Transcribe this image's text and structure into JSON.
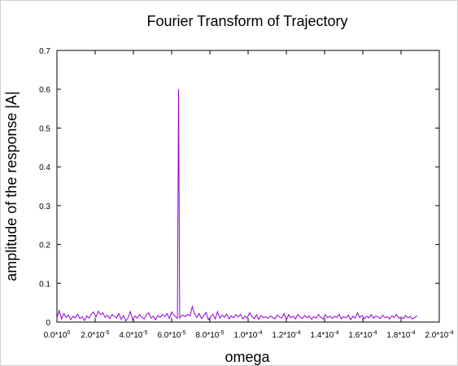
{
  "chart_data": {
    "type": "line",
    "title": "Fourier Transform of Trajectory",
    "xlabel": "omega",
    "ylabel": "amplitude of the response |A|",
    "xlim": [
      0,
      0.0002
    ],
    "ylim": [
      0,
      0.7
    ],
    "grid": false,
    "legend": "none",
    "line_color": "#9400d3",
    "x_ticks": [
      {
        "value": 0,
        "mantissa": "0.0",
        "exponent": "0"
      },
      {
        "value": 2e-05,
        "mantissa": "2.0",
        "exponent": "-5"
      },
      {
        "value": 4e-05,
        "mantissa": "4.0",
        "exponent": "-5"
      },
      {
        "value": 6e-05,
        "mantissa": "6.0",
        "exponent": "-5"
      },
      {
        "value": 8e-05,
        "mantissa": "8.0",
        "exponent": "-5"
      },
      {
        "value": 0.0001,
        "mantissa": "1.0",
        "exponent": "-4"
      },
      {
        "value": 0.00012,
        "mantissa": "1.2",
        "exponent": "-4"
      },
      {
        "value": 0.00014,
        "mantissa": "1.4",
        "exponent": "-4"
      },
      {
        "value": 0.00016,
        "mantissa": "1.6",
        "exponent": "-4"
      },
      {
        "value": 0.00018,
        "mantissa": "1.8",
        "exponent": "-4"
      },
      {
        "value": 0.0002,
        "mantissa": "2.0",
        "exponent": "-4"
      }
    ],
    "y_ticks": [
      0,
      0.1,
      0.2,
      0.3,
      0.4,
      0.5,
      0.6,
      0.7
    ],
    "y_tick_labels": [
      "0",
      "0.1",
      "0.2",
      "0.3",
      "0.4",
      "0.5",
      "0.6",
      "0.7"
    ],
    "series": [
      {
        "x": [
          0.0,
          1.2e-06,
          2.4e-06,
          3.6e-06,
          4.8e-06,
          6e-06,
          7.2e-06,
          8.4e-06,
          9.6e-06,
          1.08e-05,
          1.2e-05,
          1.32e-05,
          1.44e-05,
          1.56e-05,
          1.68e-05,
          1.8e-05,
          1.92e-05,
          2.04e-05,
          2.16e-05,
          2.28e-05,
          2.4e-05,
          2.52e-05,
          2.64e-05,
          2.76e-05,
          2.88e-05,
          3e-05,
          3.12e-05,
          3.24e-05,
          3.36e-05,
          3.48e-05,
          3.6e-05,
          3.72e-05,
          3.84e-05,
          3.96e-05,
          4.08e-05,
          4.2e-05,
          4.32e-05,
          4.44e-05,
          4.56e-05,
          4.68e-05,
          4.8e-05,
          4.92e-05,
          5.04e-05,
          5.16e-05,
          5.28e-05,
          5.4e-05,
          5.52e-05,
          5.64e-05,
          5.76e-05,
          5.88e-05,
          6e-05,
          6.12e-05,
          6.24e-05,
          6.3e-05,
          6.36e-05,
          6.42e-05,
          6.48e-05,
          6.6e-05,
          6.72e-05,
          6.84e-05,
          6.96e-05,
          7.08e-05,
          7.2e-05,
          7.32e-05,
          7.44e-05,
          7.56e-05,
          7.68e-05,
          7.8e-05,
          7.92e-05,
          8.04e-05,
          8.16e-05,
          8.28e-05,
          8.4e-05,
          8.52e-05,
          8.64e-05,
          8.76e-05,
          8.88e-05,
          9e-05,
          9.12e-05,
          9.24e-05,
          9.36e-05,
          9.48e-05,
          9.6e-05,
          9.72e-05,
          9.84e-05,
          9.96e-05,
          0.0001008,
          0.000102,
          0.0001032,
          0.0001044,
          0.0001056,
          0.0001068,
          0.000108,
          0.0001092,
          0.0001104,
          0.0001116,
          0.0001128,
          0.000114,
          0.0001152,
          0.0001164,
          0.0001176,
          0.0001188,
          0.00012,
          0.0001212,
          0.0001224,
          0.0001236,
          0.0001248,
          0.000126,
          0.0001272,
          0.0001284,
          0.0001296,
          0.0001308,
          0.000132,
          0.0001332,
          0.0001344,
          0.0001356,
          0.0001368,
          0.000138,
          0.0001392,
          0.0001404,
          0.0001416,
          0.0001428,
          0.000144,
          0.0001452,
          0.0001464,
          0.0001476,
          0.0001488,
          0.00015,
          0.0001512,
          0.0001524,
          0.0001536,
          0.0001548,
          0.000156,
          0.0001572,
          0.0001584,
          0.0001596,
          0.0001608,
          0.000162,
          0.0001632,
          0.0001644,
          0.0001656,
          0.0001668,
          0.000168,
          0.0001692,
          0.0001704,
          0.0001716,
          0.0001728,
          0.000174,
          0.0001752,
          0.0001764,
          0.0001776,
          0.0001788,
          0.00018,
          0.0001812,
          0.0001824,
          0.0001836,
          0.0001848,
          0.000186,
          0.0001872,
          0.0001884
        ],
        "y": [
          0.01,
          0.03,
          0.008,
          0.022,
          0.012,
          0.018,
          0.006,
          0.015,
          0.011,
          0.02,
          0.009,
          0.014,
          0.004,
          0.016,
          0.01,
          0.021,
          0.026,
          0.013,
          0.028,
          0.019,
          0.024,
          0.012,
          0.018,
          0.009,
          0.02,
          0.015,
          0.01,
          0.022,
          0.007,
          0.017,
          0.003,
          0.011,
          0.027,
          0.005,
          0.016,
          0.01,
          0.02,
          0.012,
          0.008,
          0.019,
          0.024,
          0.01,
          0.015,
          0.006,
          0.017,
          0.012,
          0.02,
          0.014,
          0.022,
          0.009,
          0.026,
          0.018,
          0.012,
          0.01,
          0.6,
          0.01,
          0.015,
          0.018,
          0.014,
          0.02,
          0.016,
          0.04,
          0.021,
          0.012,
          0.022,
          0.009,
          0.017,
          0.025,
          0.006,
          0.014,
          0.02,
          0.008,
          0.027,
          0.01,
          0.018,
          0.012,
          0.021,
          0.008,
          0.016,
          0.011,
          0.019,
          0.013,
          0.02,
          0.008,
          0.015,
          0.011,
          0.024,
          0.014,
          0.009,
          0.019,
          0.007,
          0.017,
          0.011,
          0.014,
          0.009,
          0.016,
          0.012,
          0.008,
          0.018,
          0.013,
          0.01,
          0.022,
          0.006,
          0.019,
          0.011,
          0.015,
          0.008,
          0.02,
          0.013,
          0.009,
          0.017,
          0.011,
          0.016,
          0.007,
          0.014,
          0.01,
          0.02,
          0.012,
          0.008,
          0.019,
          0.011,
          0.016,
          0.009,
          0.015,
          0.012,
          0.02,
          0.008,
          0.014,
          0.011,
          0.018,
          0.006,
          0.015,
          0.01,
          0.024,
          0.012,
          0.017,
          0.008,
          0.015,
          0.011,
          0.019,
          0.01,
          0.016,
          0.013,
          0.009,
          0.018,
          0.011,
          0.014,
          0.008,
          0.016,
          0.012,
          0.02,
          0.01,
          0.013,
          0.009,
          0.017,
          0.011,
          0.014,
          0.008,
          0.012,
          0.016
        ]
      }
    ]
  }
}
